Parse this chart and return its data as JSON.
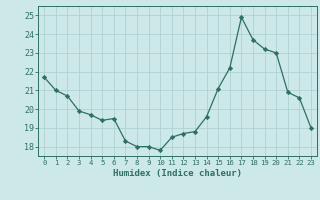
{
  "x": [
    0,
    1,
    2,
    3,
    4,
    5,
    6,
    7,
    8,
    9,
    10,
    11,
    12,
    13,
    14,
    15,
    16,
    17,
    18,
    19,
    20,
    21,
    22,
    23
  ],
  "y": [
    21.7,
    21.0,
    20.7,
    19.9,
    19.7,
    19.4,
    19.5,
    18.3,
    18.0,
    18.0,
    17.8,
    18.5,
    18.7,
    18.8,
    19.6,
    21.1,
    22.2,
    24.9,
    23.7,
    23.2,
    23.0,
    20.9,
    20.6,
    19.0
  ],
  "xlabel": "Humidex (Indice chaleur)",
  "xlim": [
    -0.5,
    23.5
  ],
  "ylim": [
    17.5,
    25.5
  ],
  "yticks": [
    18,
    19,
    20,
    21,
    22,
    23,
    24,
    25
  ],
  "xtick_labels": [
    "0",
    "1",
    "2",
    "3",
    "4",
    "5",
    "6",
    "7",
    "8",
    "9",
    "10",
    "11",
    "12",
    "13",
    "14",
    "15",
    "16",
    "17",
    "18",
    "19",
    "20",
    "21",
    "22",
    "23"
  ],
  "line_color": "#2e7060",
  "marker": "D",
  "marker_size": 2.2,
  "bg_color": "#cce8e8",
  "grid_color": "#aacece",
  "tick_color": "#2e7060",
  "label_color": "#2e7060",
  "spine_color": "#2e7060"
}
